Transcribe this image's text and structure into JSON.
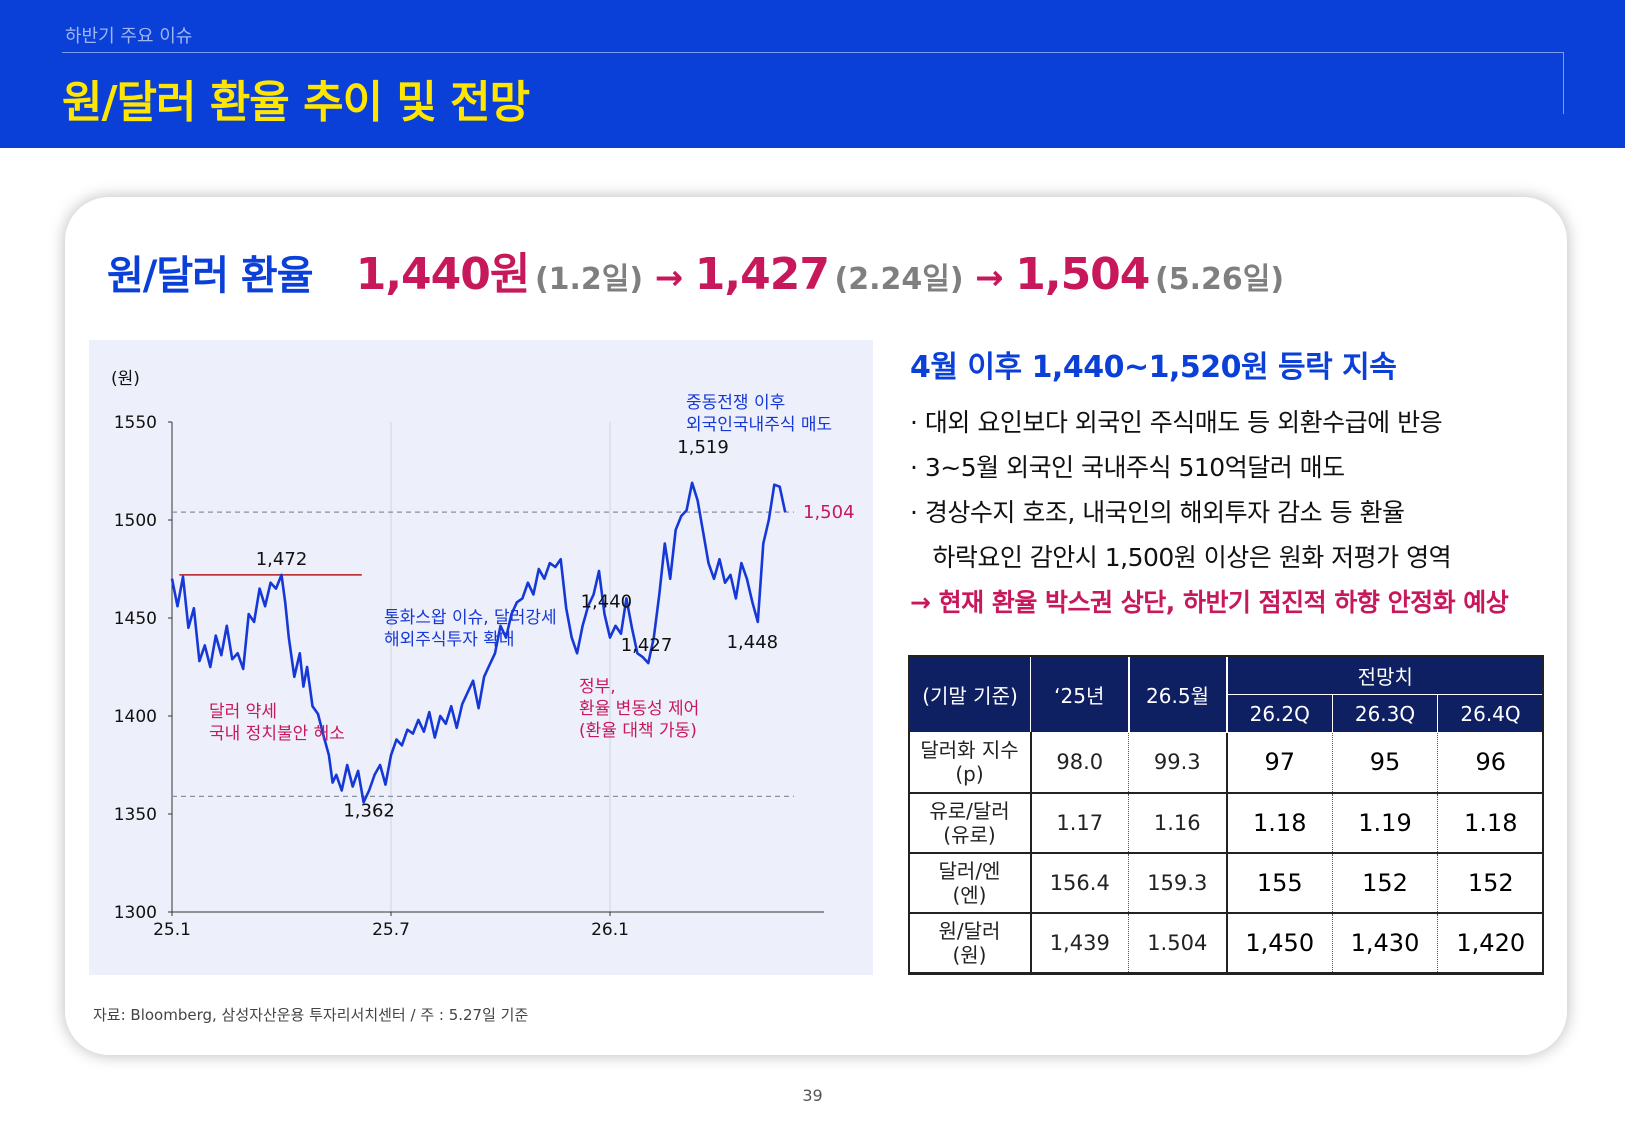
{
  "header": {
    "section_label": "하반기 주요 이슈",
    "title": "원/달러 환율 추이 및 전망"
  },
  "headline": {
    "label": "원/달러 환율",
    "points": [
      {
        "value": "1,440원",
        "date": "(1.2일)"
      },
      {
        "value": "1,427",
        "date": "(2.24일)"
      },
      {
        "value": "1,504",
        "date": "(5.26일)"
      }
    ],
    "arrow": "→"
  },
  "summary": {
    "title": "4월 이후 1,440~1,520원 등락 지속",
    "bullets": [
      "· 대외 요인보다 외국인 주식매도 등 외환수급에 반응",
      "· 3~5월 외국인 국내주식 510억달러 매도",
      "· 경상수지 호조, 내국인의 해외투자 감소 등 환율",
      "   하락요인 감안시 1,500원 이상은 원화 저평가 영역"
    ],
    "conclusion": "→ 현재 환율 박스권 상단, 하반기 점진적 하향 안정화 예상"
  },
  "forecast_table": {
    "head_row1": [
      "(기말 기준)",
      "‘25년",
      "26.5월",
      "전망치"
    ],
    "head_row2": [
      "26.2Q",
      "26.3Q",
      "26.4Q"
    ],
    "rows": [
      {
        "label_line1": "달러화 지수",
        "label_line2": "(p)",
        "y25": "98.0",
        "may26": "99.3",
        "q2": "97",
        "q3": "95",
        "q4": "96"
      },
      {
        "label_line1": "유로/달러",
        "label_line2": "(유로)",
        "y25": "1.17",
        "may26": "1.16",
        "q2": "1.18",
        "q3": "1.19",
        "q4": "1.18"
      },
      {
        "label_line1": "달러/엔",
        "label_line2": "(엔)",
        "y25": "156.4",
        "may26": "159.3",
        "q2": "155",
        "q3": "152",
        "q4": "152"
      },
      {
        "label_line1": "원/달러",
        "label_line2": "(원)",
        "y25": "1,439",
        "may26": "1.504",
        "q2": "1,450",
        "q3": "1,430",
        "q4": "1,420"
      }
    ]
  },
  "footer": {
    "source": "자료: Bloomberg, 삼성자산운용 투자리서치센터 / 주 : 5.27일 기준",
    "page_number": "39"
  },
  "colors": {
    "header_bg": "#0a3fd8",
    "title_yellow": "#ffe600",
    "accent_blue": "#0a3fd8",
    "accent_magenta": "#c8185c",
    "line_blue": "#1638d6",
    "table_header": "#0e1f62",
    "panel_bg": "#edf0fa"
  },
  "chart_data": {
    "type": "line",
    "ylabel": "(원)",
    "xlabel": "",
    "ylim": [
      1300,
      1550
    ],
    "yticks": [
      "1300",
      "1350",
      "1400",
      "1450",
      "1500",
      "1550"
    ],
    "xticks": [
      {
        "label": "25.1",
        "month": 0
      },
      {
        "label": "25.7",
        "month": 6
      },
      {
        "label": "26.1",
        "month": 12
      }
    ],
    "x_unit": "months since 25.1",
    "series": [
      {
        "name": "",
        "x": [
          0,
          0.15,
          0.3,
          0.45,
          0.6,
          0.75,
          0.9,
          1.05,
          1.2,
          1.35,
          1.5,
          1.65,
          1.8,
          1.95,
          2.1,
          2.25,
          2.4,
          2.55,
          2.7,
          2.85,
          3.0,
          3.1,
          3.2,
          3.35,
          3.5,
          3.6,
          3.7,
          3.85,
          4.0,
          4.15,
          4.3,
          4.4,
          4.5,
          4.65,
          4.8,
          4.95,
          5.1,
          5.25,
          5.4,
          5.55,
          5.7,
          5.85,
          6.0,
          6.15,
          6.3,
          6.45,
          6.6,
          6.75,
          6.9,
          7.05,
          7.2,
          7.35,
          7.5,
          7.65,
          7.8,
          7.95,
          8.1,
          8.25,
          8.4,
          8.55,
          8.7,
          8.85,
          9.0,
          9.15,
          9.3,
          9.45,
          9.6,
          9.75,
          9.9,
          10.05,
          10.2,
          10.35,
          10.5,
          10.65,
          10.8,
          10.95,
          11.1,
          11.25,
          11.4,
          11.55,
          11.7,
          11.85,
          12.0,
          12.15,
          12.3,
          12.45,
          12.6,
          12.75,
          12.9,
          13.05,
          13.2,
          13.35,
          13.5,
          13.65,
          13.8,
          13.95,
          14.1,
          14.25,
          14.4,
          14.55,
          14.7,
          14.85,
          15.0,
          15.15,
          15.3,
          15.45,
          15.6,
          15.75,
          15.9,
          16.05,
          16.2,
          16.35,
          16.5,
          16.65,
          16.8
        ],
        "y": [
          1470,
          1456,
          1471,
          1445,
          1455,
          1428,
          1436,
          1425,
          1441,
          1431,
          1446,
          1429,
          1432,
          1424,
          1452,
          1448,
          1465,
          1456,
          1468,
          1465,
          1472,
          1458,
          1440,
          1420,
          1432,
          1415,
          1425,
          1405,
          1401,
          1390,
          1380,
          1366,
          1370,
          1362,
          1375,
          1364,
          1372,
          1356,
          1362,
          1370,
          1375,
          1365,
          1380,
          1388,
          1385,
          1393,
          1391,
          1398,
          1392,
          1402,
          1389,
          1400,
          1396,
          1405,
          1394,
          1406,
          1412,
          1418,
          1404,
          1420,
          1426,
          1432,
          1446,
          1440,
          1452,
          1458,
          1460,
          1468,
          1462,
          1475,
          1470,
          1478,
          1476,
          1480,
          1455,
          1440,
          1432,
          1446,
          1456,
          1462,
          1474,
          1452,
          1440,
          1446,
          1442,
          1460,
          1445,
          1432,
          1430,
          1427,
          1440,
          1462,
          1488,
          1470,
          1495,
          1502,
          1505,
          1519,
          1510,
          1494,
          1478,
          1470,
          1480,
          1468,
          1472,
          1460,
          1478,
          1470,
          1458,
          1448,
          1488,
          1500,
          1518,
          1517,
          1504
        ]
      }
    ],
    "reference_lines": [
      {
        "y": 1504,
        "label": "1,504",
        "style": "dashed"
      },
      {
        "y": 1359,
        "label": "",
        "style": "dashed"
      }
    ],
    "highlight_segment": {
      "y": 1472,
      "x_start": 0.2,
      "x_end": 5.2,
      "label": "1,472"
    },
    "point_labels": [
      {
        "x": 3.0,
        "y": 1472,
        "label": "1,472"
      },
      {
        "x": 5.4,
        "y": 1362,
        "label": "1,362"
      },
      {
        "x": 11.9,
        "y": 1440,
        "label": "1,440"
      },
      {
        "x": 13.0,
        "y": 1427,
        "label": "1,427"
      },
      {
        "x": 14.55,
        "y": 1519,
        "label": "1,519"
      },
      {
        "x": 15.9,
        "y": 1448,
        "label": "1,448"
      }
    ],
    "annotations": [
      {
        "lines": [
          "중동전쟁 이후",
          "외국인국내주식 매도"
        ],
        "color": "#1638d6"
      },
      {
        "lines": [
          "통화스왑 이슈, 달러강세",
          "해외주식투자 확대"
        ],
        "color": "#1638d6"
      },
      {
        "lines": [
          "달러 약세",
          "국내 정치불안 해소"
        ],
        "color": "#c8185c"
      },
      {
        "lines": [
          "정부,",
          "환율 변동성 제어",
          "(환율 대책 가동)"
        ],
        "color": "#c8185c"
      }
    ],
    "grid": false,
    "legend": "none"
  }
}
